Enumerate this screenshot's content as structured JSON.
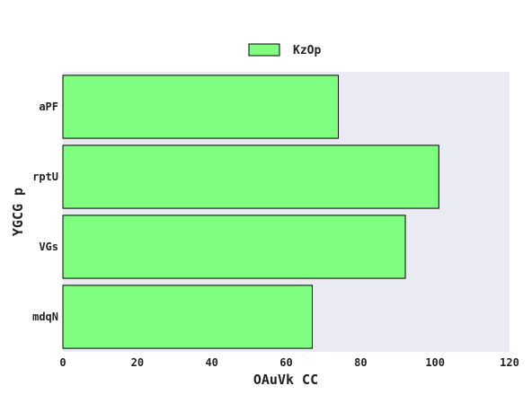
{
  "chart_data": {
    "type": "bar",
    "orientation": "horizontal",
    "categories": [
      "aPF",
      "rptU",
      "VGs",
      "mdqN"
    ],
    "series": [
      {
        "name": "KzOp",
        "values": [
          74,
          101,
          92,
          67
        ]
      }
    ],
    "xlabel": "OAuVk CC",
    "ylabel": "YGCG p",
    "xlim": [
      0,
      120
    ],
    "xticks": [
      "0",
      "20",
      "40",
      "60",
      "80",
      "100",
      "120"
    ],
    "grid": false,
    "legend_position": "top-center",
    "colors": {
      "bar": "#7fff7f",
      "bar_edge": "#000000",
      "plot_background": "#eaeaf2"
    }
  }
}
